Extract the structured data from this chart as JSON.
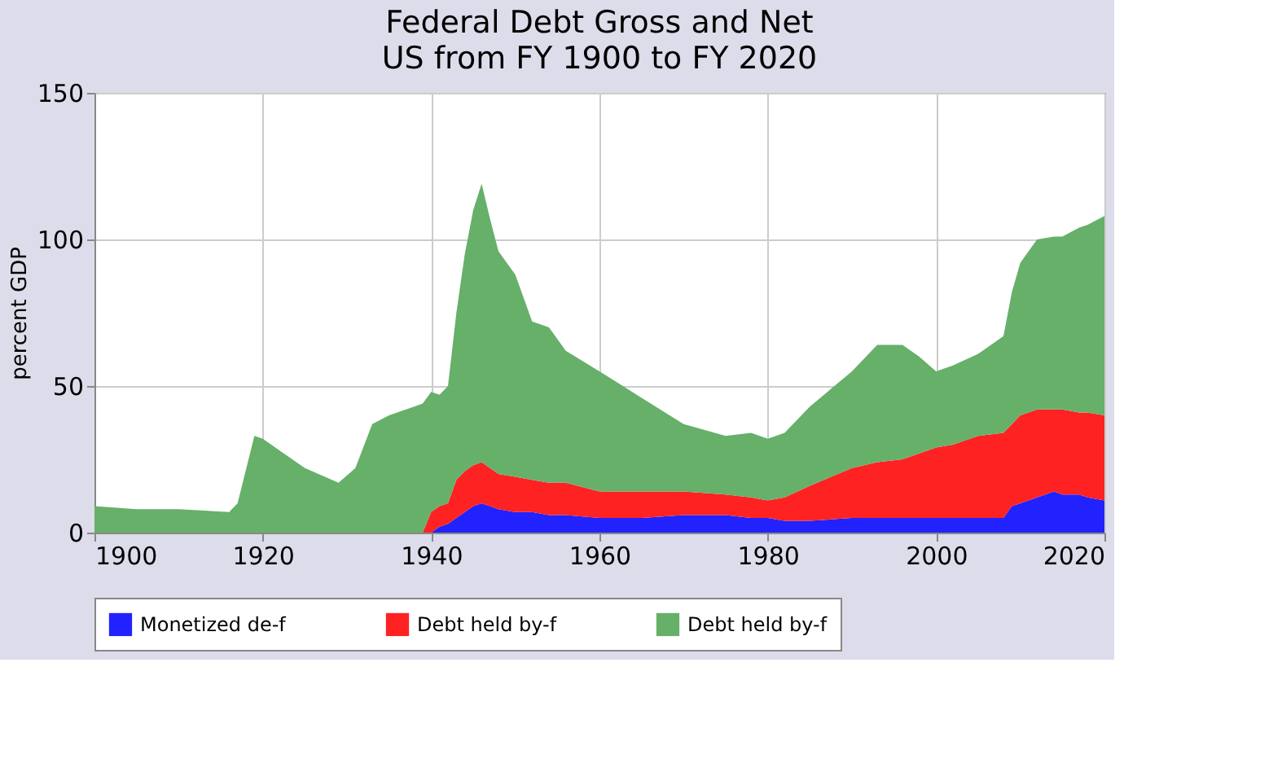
{
  "chart_data": {
    "type": "area",
    "stacked": true,
    "title": "Federal Debt Gross and Net",
    "subtitle": "US from FY 1900 to FY 2020",
    "ylabel": "percent GDP",
    "x": [
      1900,
      1905,
      1910,
      1916,
      1917,
      1919,
      1920,
      1922,
      1925,
      1929,
      1931,
      1933,
      1935,
      1939,
      1940,
      1941,
      1942,
      1943,
      1944,
      1945,
      1946,
      1947,
      1948,
      1950,
      1952,
      1954,
      1956,
      1960,
      1965,
      1970,
      1975,
      1978,
      1980,
      1982,
      1985,
      1990,
      1993,
      1996,
      1998,
      2000,
      2002,
      2005,
      2008,
      2009,
      2010,
      2012,
      2014,
      2015,
      2017,
      2018,
      2020
    ],
    "series": [
      {
        "name": "Monetized de-f",
        "color": "#2222ff",
        "values": [
          0,
          0,
          0,
          0,
          0,
          0,
          0,
          0,
          0,
          0,
          0,
          0,
          0,
          0,
          0,
          2,
          3,
          5,
          7,
          9,
          10,
          9,
          8,
          7,
          7,
          6,
          6,
          5,
          5,
          6,
          6,
          5,
          5,
          4,
          4,
          5,
          5,
          5,
          5,
          5,
          5,
          5,
          5,
          9,
          10,
          12,
          14,
          13,
          13,
          12,
          11
        ]
      },
      {
        "name": "Debt held by-f",
        "color": "#ff2222",
        "values": [
          0,
          0,
          0,
          0,
          0,
          0,
          0,
          0,
          0,
          0,
          0,
          0,
          0,
          0,
          7,
          7,
          7,
          13,
          14,
          14,
          14,
          13,
          12,
          12,
          11,
          11,
          11,
          9,
          9,
          8,
          7,
          7,
          6,
          8,
          12,
          17,
          19,
          20,
          22,
          24,
          25,
          28,
          29,
          28,
          30,
          30,
          28,
          29,
          28,
          29,
          29
        ]
      },
      {
        "name": "Debt held by-f",
        "color": "#66b06a",
        "values": [
          9,
          8,
          8,
          7,
          10,
          33,
          32,
          28,
          22,
          17,
          22,
          37,
          40,
          44,
          41,
          38,
          40,
          57,
          74,
          87,
          95,
          85,
          76,
          69,
          54,
          53,
          45,
          41,
          32,
          23,
          20,
          22,
          21,
          22,
          27,
          33,
          40,
          39,
          33,
          26,
          27,
          28,
          33,
          45,
          52,
          58,
          59,
          59,
          63,
          64,
          68
        ]
      }
    ],
    "xlim": [
      1900,
      2020
    ],
    "xticks": [
      1900,
      1920,
      1940,
      1960,
      1980,
      2000,
      2020
    ],
    "ylim": [
      0,
      150
    ],
    "yticks": [
      0,
      50,
      100,
      150
    ],
    "grid": true,
    "legend": "bottom"
  }
}
